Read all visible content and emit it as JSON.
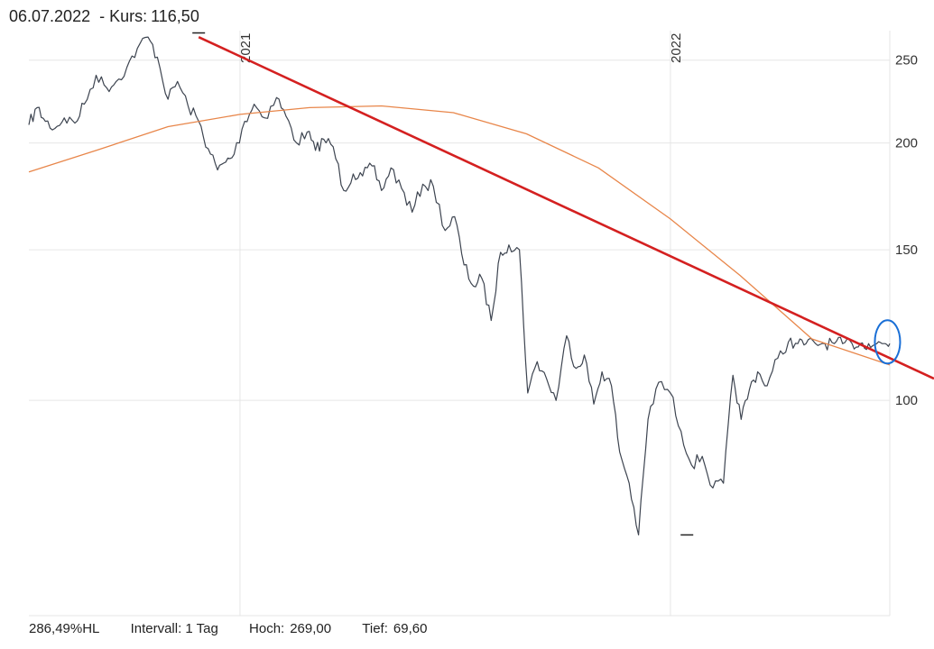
{
  "header": {
    "date": "06.07.2022",
    "kurs_label": "- Kurs:",
    "kurs_value": "116,50"
  },
  "footer": {
    "hl": "286,49%HL",
    "intervall": "Intervall: 1 Tag",
    "hoch_label": "Hoch:",
    "hoch_value": "269,00",
    "tief_label": "Tief:",
    "tief_value": "69,60"
  },
  "chart_data": {
    "type": "line",
    "y_scale": "log",
    "ylim": [
      56,
      270
    ],
    "y_ticks": [
      {
        "value": 100,
        "label": "100"
      },
      {
        "value": 150,
        "label": "150"
      },
      {
        "value": 200,
        "label": "200"
      },
      {
        "value": 250,
        "label": "250"
      }
    ],
    "x_range": [
      "2020-07-06",
      "2022-07-06"
    ],
    "x_ticks": [
      {
        "date": "2021-01-01",
        "label": "2021"
      },
      {
        "date": "2022-01-01",
        "label": "2022"
      }
    ],
    "grid": true,
    "colors": {
      "price": "#3d4450",
      "ma": "#e8864a",
      "trend": "#d42020",
      "marker": "#1a6fd6",
      "grid": "#e6e6e6"
    },
    "series": [
      {
        "role": "price",
        "x": [
          "2020-07-06",
          "2020-07-13",
          "2020-07-20",
          "2020-07-28",
          "2020-08-05",
          "2020-08-14",
          "2020-08-22",
          "2020-09-01",
          "2020-09-10",
          "2020-09-18",
          "2020-09-27",
          "2020-10-06",
          "2020-10-15",
          "2020-10-23",
          "2020-11-01",
          "2020-11-09",
          "2020-11-18",
          "2020-11-27",
          "2020-12-05",
          "2020-12-13",
          "2020-12-20",
          "2020-12-27",
          "2021-01-05",
          "2021-01-13",
          "2021-01-22",
          "2021-02-01",
          "2021-02-09",
          "2021-02-18",
          "2021-02-27",
          "2021-03-06",
          "2021-03-13",
          "2021-03-21",
          "2021-03-30",
          "2021-04-07",
          "2021-04-15",
          "2021-04-23",
          "2021-05-01",
          "2021-05-09",
          "2021-05-18",
          "2021-05-27",
          "2021-06-05",
          "2021-06-14",
          "2021-06-24",
          "2021-07-02",
          "2021-07-10",
          "2021-07-18",
          "2021-07-25",
          "2021-08-02",
          "2021-08-10",
          "2021-08-17",
          "2021-08-26",
          "2021-09-02",
          "2021-09-10",
          "2021-09-18",
          "2021-09-26",
          "2021-10-05",
          "2021-10-13",
          "2021-10-20",
          "2021-10-28",
          "2021-11-04",
          "2021-11-12",
          "2021-11-19",
          "2021-11-27",
          "2021-12-05",
          "2021-12-13",
          "2021-12-22",
          "2022-01-01",
          "2022-01-10",
          "2022-01-19",
          "2022-01-28",
          "2022-02-06",
          "2022-02-15",
          "2022-02-23",
          "2022-03-02",
          "2022-03-09",
          "2022-03-16",
          "2022-03-24",
          "2022-04-02",
          "2022-04-11",
          "2022-04-19",
          "2022-04-26",
          "2022-05-04",
          "2022-05-12",
          "2022-05-20",
          "2022-05-27",
          "2022-06-04",
          "2022-06-11",
          "2022-06-18",
          "2022-06-25",
          "2022-07-01",
          "2022-07-06"
        ],
        "values": [
          210,
          220,
          212,
          208,
          214,
          211,
          222,
          240,
          232,
          236,
          245,
          258,
          266,
          252,
          225,
          236,
          221,
          212,
          197,
          186,
          190,
          194,
          212,
          222,
          214,
          226,
          215,
          200,
          206,
          196,
          202,
          198,
          176,
          184,
          183,
          188,
          176,
          187,
          177,
          166,
          179,
          178,
          158,
          164,
          144,
          136,
          139,
          124,
          149,
          152,
          150,
          102,
          111,
          106,
          100,
          119,
          109,
          113,
          99,
          108,
          104,
          87,
          80,
          69.6,
          95,
          105,
          102,
          92,
          84,
          86,
          79,
          80,
          107,
          95,
          103,
          108,
          104,
          112,
          117,
          116.5,
          116.5,
          116.5,
          116.5,
          116.5,
          116.5,
          116.5,
          116.5,
          116.5,
          116.5,
          116.5,
          116.5
        ]
      },
      {
        "role": "moving-average",
        "x": [
          "2020-07-06",
          "2020-09-01",
          "2020-11-01",
          "2021-01-01",
          "2021-03-01",
          "2021-05-01",
          "2021-07-01",
          "2021-09-01",
          "2021-11-01",
          "2022-01-01",
          "2022-03-01",
          "2022-05-01",
          "2022-07-06"
        ],
        "values": [
          185,
          196,
          209,
          216,
          220,
          221,
          217,
          205,
          187,
          163,
          140,
          118,
          110
        ]
      },
      {
        "role": "trendline",
        "x": [
          "2020-11-27",
          "2022-07-31"
        ],
        "values": [
          266,
          108
        ]
      }
    ],
    "annotations": [
      {
        "type": "high-marker",
        "date": "2020-11-27",
        "value": 269.0
      },
      {
        "type": "low-marker",
        "date": "2022-01-15",
        "value": 69.6
      },
      {
        "type": "circle",
        "date": "2022-07-01",
        "value": 116.5
      }
    ]
  }
}
